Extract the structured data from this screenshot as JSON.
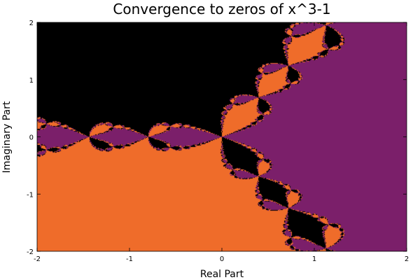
{
  "chart_data": {
    "type": "heatmap",
    "title": "Convergence to zeros of x^3-1",
    "xlabel": "Real Part",
    "ylabel": "Imaginary Part",
    "xlim": [
      -2,
      2
    ],
    "ylim": [
      -2,
      2
    ],
    "x_ticks": [
      -2,
      -1,
      0,
      1,
      2
    ],
    "y_ticks": [
      -2,
      -1,
      0,
      1,
      2
    ],
    "x_tick_labels": [
      "-2",
      "-1",
      "0",
      "1",
      "2"
    ],
    "y_tick_labels": [
      "-2",
      "-1",
      "0",
      "1",
      "2"
    ],
    "grid": false,
    "legend": "none",
    "function": "x^3-1",
    "method": "newton",
    "max_iterations": 40,
    "tolerance": 1e-06,
    "roots": [
      {
        "re": 1,
        "im": 0,
        "color": "#7b1f6a"
      },
      {
        "re": -0.5,
        "im": 0.8660254,
        "color": "#000000"
      },
      {
        "re": -0.5,
        "im": -0.8660254,
        "color": "#ef6c2a"
      }
    ],
    "no_convergence_color": "#000000"
  }
}
